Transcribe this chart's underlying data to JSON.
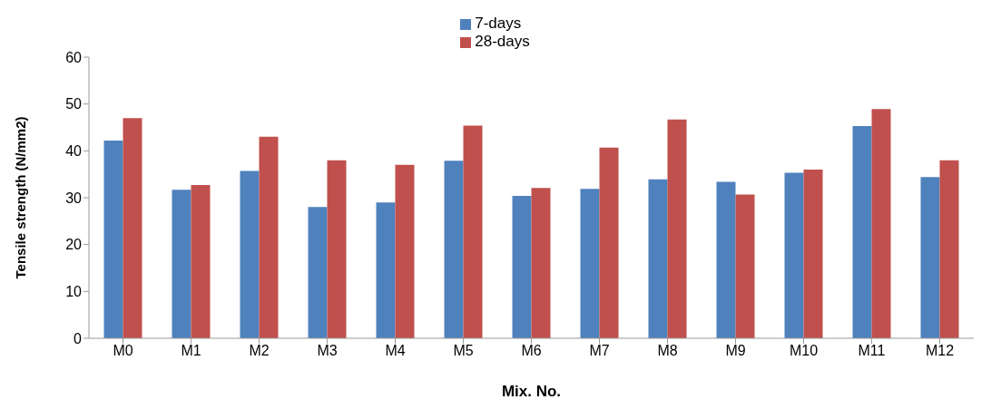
{
  "chart_data": {
    "type": "bar",
    "xlabel": "Mix. No.",
    "ylabel": "Tensile strength (N/mm2)",
    "categories": [
      "M0",
      "M1",
      "M2",
      "M3",
      "M4",
      "M5",
      "M6",
      "M7",
      "M8",
      "M9",
      "M10",
      "M11",
      "M12"
    ],
    "series": [
      {
        "name": "7-days",
        "color": "#4f81bd",
        "values": [
          42.2,
          31.7,
          35.7,
          28.0,
          29.0,
          37.9,
          30.4,
          31.9,
          33.9,
          33.4,
          35.3,
          45.3,
          34.4
        ]
      },
      {
        "name": "28-days",
        "color": "#c0504d",
        "values": [
          47.0,
          32.7,
          43.0,
          38.0,
          37.0,
          45.4,
          32.1,
          40.7,
          46.7,
          30.7,
          36.0,
          48.9,
          38.0
        ]
      }
    ],
    "ylim": [
      0,
      60
    ],
    "yticks": [
      0,
      10,
      20,
      30,
      40,
      50,
      60
    ],
    "grid": false,
    "legend": "top"
  }
}
